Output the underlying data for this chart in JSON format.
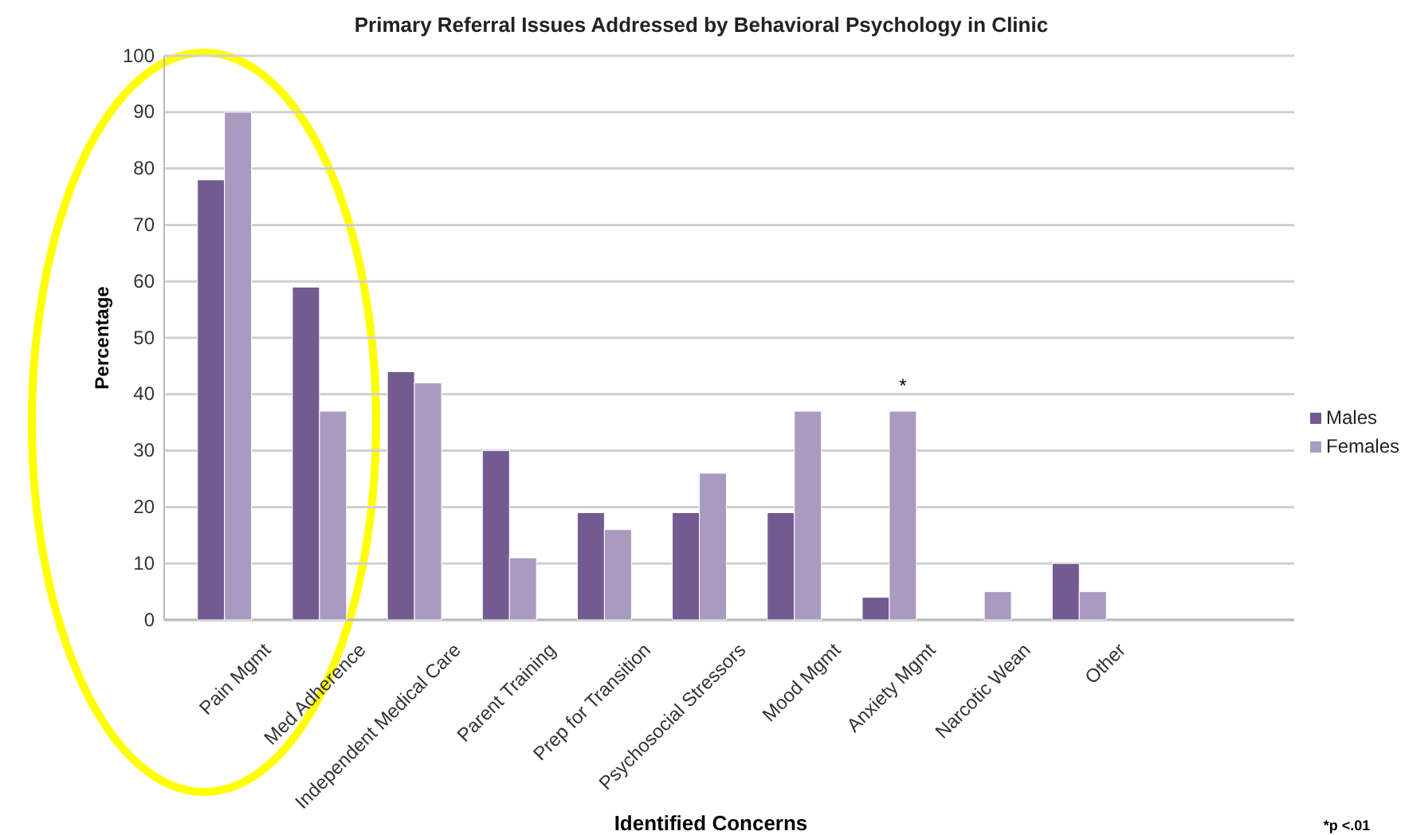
{
  "chart_data": {
    "type": "bar",
    "title": "Primary Referral Issues Addressed by Behavioral Psychology in Clinic",
    "xlabel": "Identified Concerns",
    "ylabel": "Percentage",
    "categories": [
      "Pain Mgmt",
      "Med Adherence",
      "Independent Medical Care",
      "Parent Training",
      "Prep for Transition",
      "Psychosocial Stressors",
      "Mood Mgmt",
      "Anxiety Mgmt",
      "Narcotic Wean",
      "Other"
    ],
    "series": [
      {
        "name": "Males",
        "color": "#735a91",
        "values": [
          78,
          59,
          44,
          30,
          19,
          19,
          19,
          4,
          0,
          10
        ]
      },
      {
        "name": "Females",
        "color": "#a99abf",
        "values": [
          90,
          37,
          42,
          11,
          16,
          26,
          37,
          37,
          5,
          5
        ]
      }
    ],
    "ylim": [
      0,
      100
    ],
    "yticks": [
      0,
      10,
      20,
      30,
      40,
      50,
      60,
      70,
      80,
      90,
      100
    ],
    "grid": "y",
    "legend": "right",
    "annotations": [
      "*",
      "*p <.01"
    ]
  }
}
